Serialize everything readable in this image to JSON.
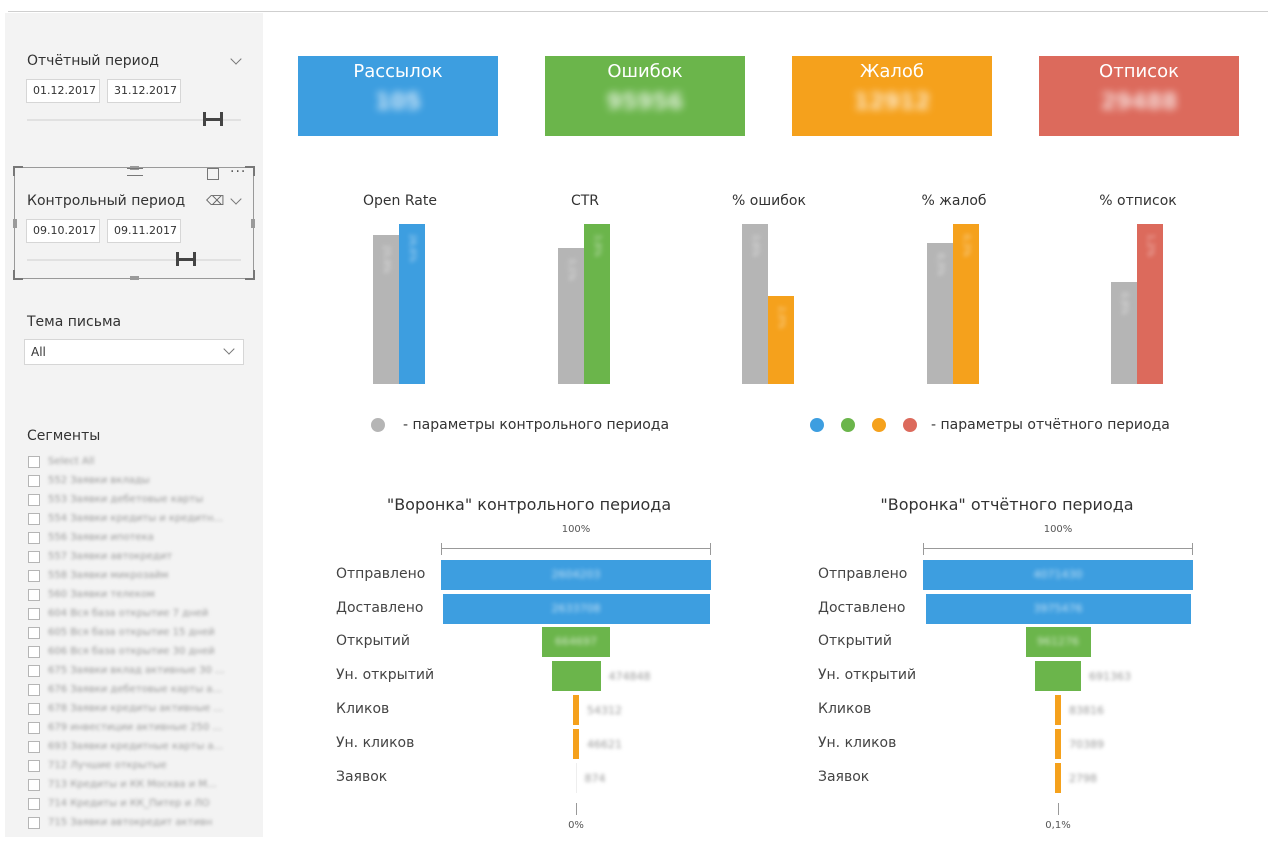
{
  "colors": {
    "blue": "#3d9ee0",
    "green": "#6bb54b",
    "orange": "#f5a11c",
    "red": "#dc6a5c",
    "gray": "#b5b5b5"
  },
  "slicers": {
    "report": {
      "title": "Отчётный период",
      "from": "01.12.2017",
      "to": "31.12.2017"
    },
    "control": {
      "title": "Контрольный период",
      "from": "09.10.2017",
      "to": "09.11.2017"
    },
    "topic": {
      "title": "Тема письма",
      "value": "All"
    }
  },
  "segments": {
    "title": "Сегменты",
    "items": [
      "Select All",
      "552 Заявки вклады",
      "553 Заявки дебетовые карты",
      "554 Заявки кредиты и кредитн...",
      "556 Заявки ипотека",
      "557 Заявки автокредит",
      "558 Заявки микрозайм",
      "560 Заявки телеком",
      "604 Вся база открытие 7 дней",
      "605 Вся база открытие 15 дней",
      "606 Вся база открытие 30 дней",
      "675 Заявки вклад активные 30 ...",
      "676 Заявки дебетовые карты а...",
      "678 Заявки кредиты активные ...",
      "679 инвестиции активные 250 ...",
      "693 Заявки кредитные карты а...",
      "712 Лучшие открытые",
      "713 Кредиты и КК Москва и М...",
      "714 Кредиты и КК_Питер и ЛО",
      "715 Заявки автокредит активн"
    ]
  },
  "kpis": [
    {
      "label": "Рассылок",
      "value": "105",
      "color": "#3d9ee0"
    },
    {
      "label": "Ошибок",
      "value": "95956",
      "color": "#6bb54b"
    },
    {
      "label": "Жалоб",
      "value": "12912",
      "color": "#f5a11c"
    },
    {
      "label": "Отписок",
      "value": "29488",
      "color": "#dc6a5c"
    }
  ],
  "metrics": [
    {
      "title": "Open Rate",
      "control": 0.93,
      "report": 1.0,
      "color": "#3d9ee0",
      "control_label": "25,9%",
      "report_label": "26,6%"
    },
    {
      "title": "CTR",
      "control": 0.85,
      "report": 1.0,
      "color": "#6bb54b",
      "control_label": "3,1%",
      "report_label": "3,8%"
    },
    {
      "title": "% ошибок",
      "control": 1.0,
      "report": 0.55,
      "color": "#f5a11c",
      "control_label": "3,6%",
      "report_label": "2,0%"
    },
    {
      "title": "% жалоб",
      "control": 0.88,
      "report": 1.0,
      "color": "#f5a11c",
      "control_label": "0,3%",
      "report_label": "0,3%"
    },
    {
      "title": "% отписок",
      "control": 0.64,
      "report": 1.0,
      "color": "#dc6a5c",
      "control_label": "0,8%",
      "report_label": "1,2%"
    }
  ],
  "legend": {
    "control_text": "- параметры контрольного периода",
    "report_text": "- параметры отчётного периода"
  },
  "funnels": [
    {
      "title": "\"Воронка\" контрольного периода",
      "top_pct": "100%",
      "bottom_pct": "0%",
      "stages": [
        {
          "label": "Отправлено",
          "value": "2604203",
          "share": 1.0,
          "color": "#3d9ee0"
        },
        {
          "label": "Доставлено",
          "value": "2633708",
          "share": 0.99,
          "color": "#3d9ee0"
        },
        {
          "label": "Открытий",
          "value": "664697",
          "share": 0.25,
          "color": "#6bb54b"
        },
        {
          "label": "Ун. открытий",
          "value": "474848",
          "share": 0.18,
          "color": "#6bb54b"
        },
        {
          "label": "Кликов",
          "value": "54312",
          "share": 0.02,
          "color": "#f5a11c"
        },
        {
          "label": "Ун. кликов",
          "value": "46621",
          "share": 0.018,
          "color": "#f5a11c"
        },
        {
          "label": "Заявок",
          "value": "874",
          "share": 0.0,
          "color": "#f5a11c"
        }
      ]
    },
    {
      "title": "\"Воронка\" отчётного периода",
      "top_pct": "100%",
      "bottom_pct": "0,1%",
      "stages": [
        {
          "label": "Отправлено",
          "value": "4071430",
          "share": 1.0,
          "color": "#3d9ee0"
        },
        {
          "label": "Доставлено",
          "value": "3975476",
          "share": 0.98,
          "color": "#3d9ee0"
        },
        {
          "label": "Открытий",
          "value": "961276",
          "share": 0.24,
          "color": "#6bb54b"
        },
        {
          "label": "Ун. открытий",
          "value": "691363",
          "share": 0.17,
          "color": "#6bb54b"
        },
        {
          "label": "Кликов",
          "value": "83816",
          "share": 0.02,
          "color": "#f5a11c"
        },
        {
          "label": "Ун. кликов",
          "value": "70389",
          "share": 0.017,
          "color": "#f5a11c"
        },
        {
          "label": "Заявок",
          "value": "2798",
          "share": 0.001,
          "color": "#f5a11c"
        }
      ]
    }
  ]
}
